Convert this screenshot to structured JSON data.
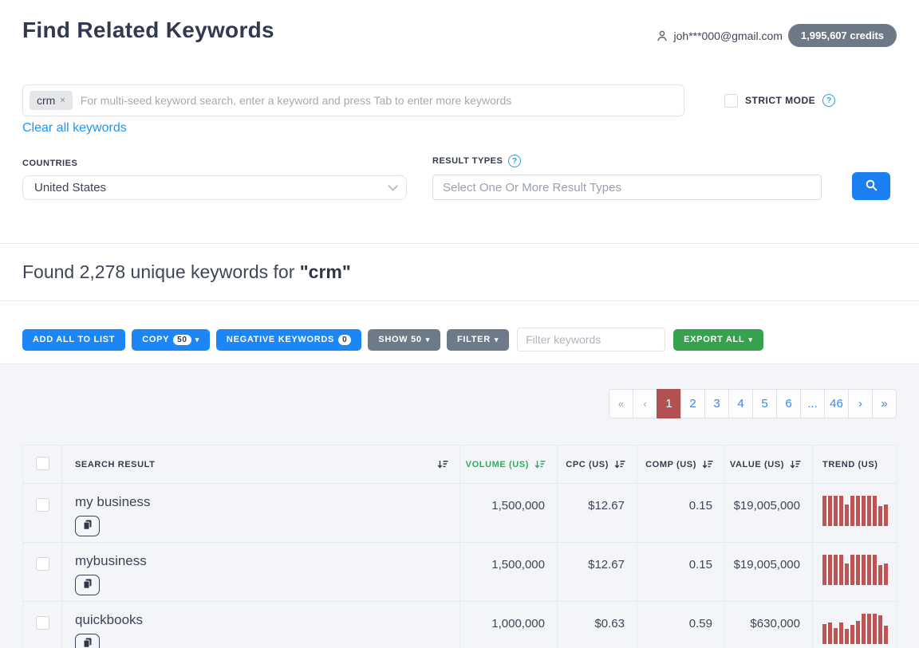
{
  "header": {
    "title": "Find Related Keywords",
    "user_email": "joh***000@gmail.com",
    "credits": "1,995,607 credits"
  },
  "search": {
    "seed_tag": "crm",
    "tag_remove": "×",
    "placeholder": "For multi-seed keyword search, enter a keyword and press Tab to enter more keywords",
    "clear_link": "Clear all keywords",
    "strict_mode_label": "STRICT MODE",
    "countries_label": "COUNTRIES",
    "countries_value": "United States",
    "result_types_label": "RESULT TYPES",
    "result_types_placeholder": "Select One Or More Result Types"
  },
  "results": {
    "heading_prefix": "Found 2,278 unique keywords for ",
    "heading_term": "\"crm\""
  },
  "toolbar": {
    "add_all_label": "ADD ALL TO LIST",
    "copy_label": "COPY",
    "copy_badge": "50",
    "negative_label": "NEGATIVE KEYWORDS",
    "negative_badge": "0",
    "show_label": "SHOW 50",
    "filter_label": "FILTER",
    "filter_placeholder": "Filter keywords",
    "export_label": "EXPORT ALL",
    "caret": "▾"
  },
  "pagination": {
    "items": [
      "«",
      "‹",
      "1",
      "2",
      "3",
      "4",
      "5",
      "6",
      "...",
      "46",
      "›",
      "»"
    ],
    "active_index": 2,
    "disabled_indices": [
      0,
      1
    ]
  },
  "table": {
    "columns": {
      "search_result": "SEARCH RESULT",
      "volume": "VOLUME (US)",
      "cpc": "CPC (US)",
      "comp": "COMP (US)",
      "value": "VALUE (US)",
      "trend": "TREND (US)"
    },
    "rows": [
      {
        "keyword": "my business",
        "volume": "1,500,000",
        "cpc": "$12.67",
        "comp": "0.15",
        "value": "$19,005,000",
        "trend": [
          1,
          1,
          1,
          1,
          0.72,
          1,
          1,
          1,
          1,
          1,
          0.65,
          0.7
        ]
      },
      {
        "keyword": "mybusiness",
        "volume": "1,500,000",
        "cpc": "$12.67",
        "comp": "0.15",
        "value": "$19,005,000",
        "trend": [
          1,
          1,
          1,
          1,
          0.72,
          1,
          1,
          1,
          1,
          1,
          0.65,
          0.7
        ]
      },
      {
        "keyword": "quickbooks",
        "volume": "1,000,000",
        "cpc": "$0.63",
        "comp": "0.59",
        "value": "$630,000",
        "trend": [
          0.65,
          0.72,
          0.52,
          0.72,
          0.5,
          0.62,
          0.75,
          1,
          1,
          1,
          0.95,
          0.6
        ]
      }
    ]
  },
  "colors": {
    "accent_blue": "#1d86f5",
    "link_blue": "#2196f3",
    "slate": "#6d7b88",
    "export_green": "#36a24e",
    "volume_green": "#2fae5e",
    "active_page_red": "#b15151",
    "trend_bar_red": "#bf5454",
    "credits_gray": "#6e7987"
  }
}
